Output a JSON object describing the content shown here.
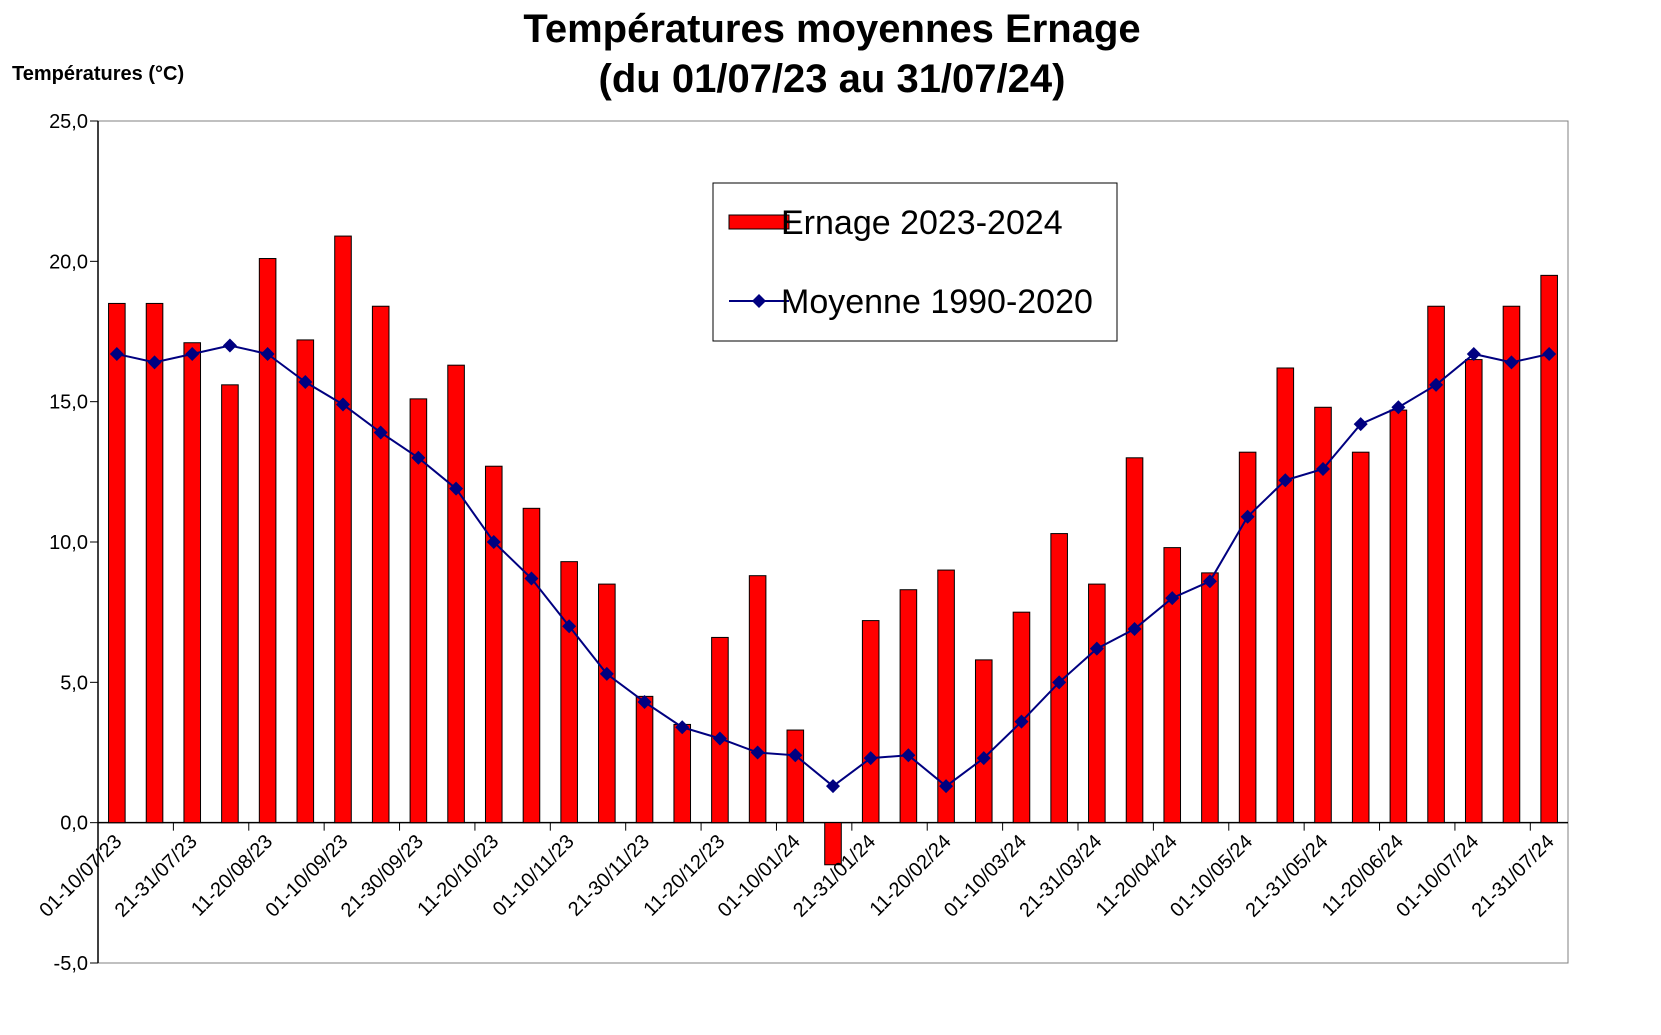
{
  "chart_data": {
    "type": "bar_line",
    "title": [
      "Températures moyennes Ernage",
      "(du 01/07/23 au 31/07/24)"
    ],
    "y_label": "Températures (°C)",
    "categories": [
      "01-10/07/23",
      null,
      "21-31/07/23",
      null,
      "11-20/08/23",
      null,
      "01-10/09/23",
      null,
      "21-30/09/23",
      null,
      "11-20/10/23",
      null,
      "01-10/11/23",
      null,
      "21-30/11/23",
      null,
      "11-20/12/23",
      null,
      "01-10/01/24",
      null,
      "21-31/01/24",
      null,
      "11-20/02/24",
      null,
      "01-10/03/24",
      null,
      "21-31/03/24",
      null,
      "11-20/04/24",
      null,
      "01-10/05/24",
      null,
      "21-31/05/24",
      null,
      "11-20/06/24",
      null,
      "01-10/07/24",
      null,
      "21-31/07/24"
    ],
    "series": [
      {
        "name": "Ernage 2023-2024",
        "type": "bar",
        "color": "#ff0000",
        "values": [
          18.5,
          18.5,
          17.1,
          15.6,
          20.1,
          17.2,
          20.9,
          18.4,
          15.1,
          16.3,
          12.7,
          11.2,
          9.3,
          8.5,
          4.5,
          3.5,
          6.6,
          8.8,
          3.3,
          -1.5,
          7.2,
          8.3,
          9.0,
          5.8,
          7.5,
          10.3,
          8.5,
          13.0,
          9.8,
          8.9,
          13.2,
          16.2,
          14.8,
          13.2,
          14.7,
          18.4,
          16.5,
          18.4,
          19.5
        ]
      },
      {
        "name": "Moyenne 1990-2020",
        "type": "line",
        "color": "#000080",
        "values": [
          16.7,
          16.4,
          16.7,
          17.0,
          16.7,
          15.7,
          14.9,
          13.9,
          13.0,
          11.9,
          10.0,
          8.7,
          7.0,
          5.3,
          4.3,
          3.4,
          3.0,
          2.5,
          2.4,
          1.3,
          2.3,
          2.4,
          1.3,
          2.3,
          3.6,
          5.0,
          6.2,
          6.9,
          8.0,
          8.6,
          10.9,
          12.2,
          12.6,
          14.2,
          14.8,
          15.6,
          16.7,
          16.4,
          16.7
        ]
      }
    ],
    "ylim": [
      -5,
      25
    ],
    "yticks": [
      {
        "value": -5,
        "label": "-5,0"
      },
      {
        "value": 0,
        "label": "0,0"
      },
      {
        "value": 5,
        "label": "5,0"
      },
      {
        "value": 10,
        "label": "10,0"
      },
      {
        "value": 15,
        "label": "15,0"
      },
      {
        "value": 20,
        "label": "20,0"
      },
      {
        "value": 25,
        "label": "25,0"
      }
    ],
    "grid": false,
    "legend": "upper center"
  }
}
